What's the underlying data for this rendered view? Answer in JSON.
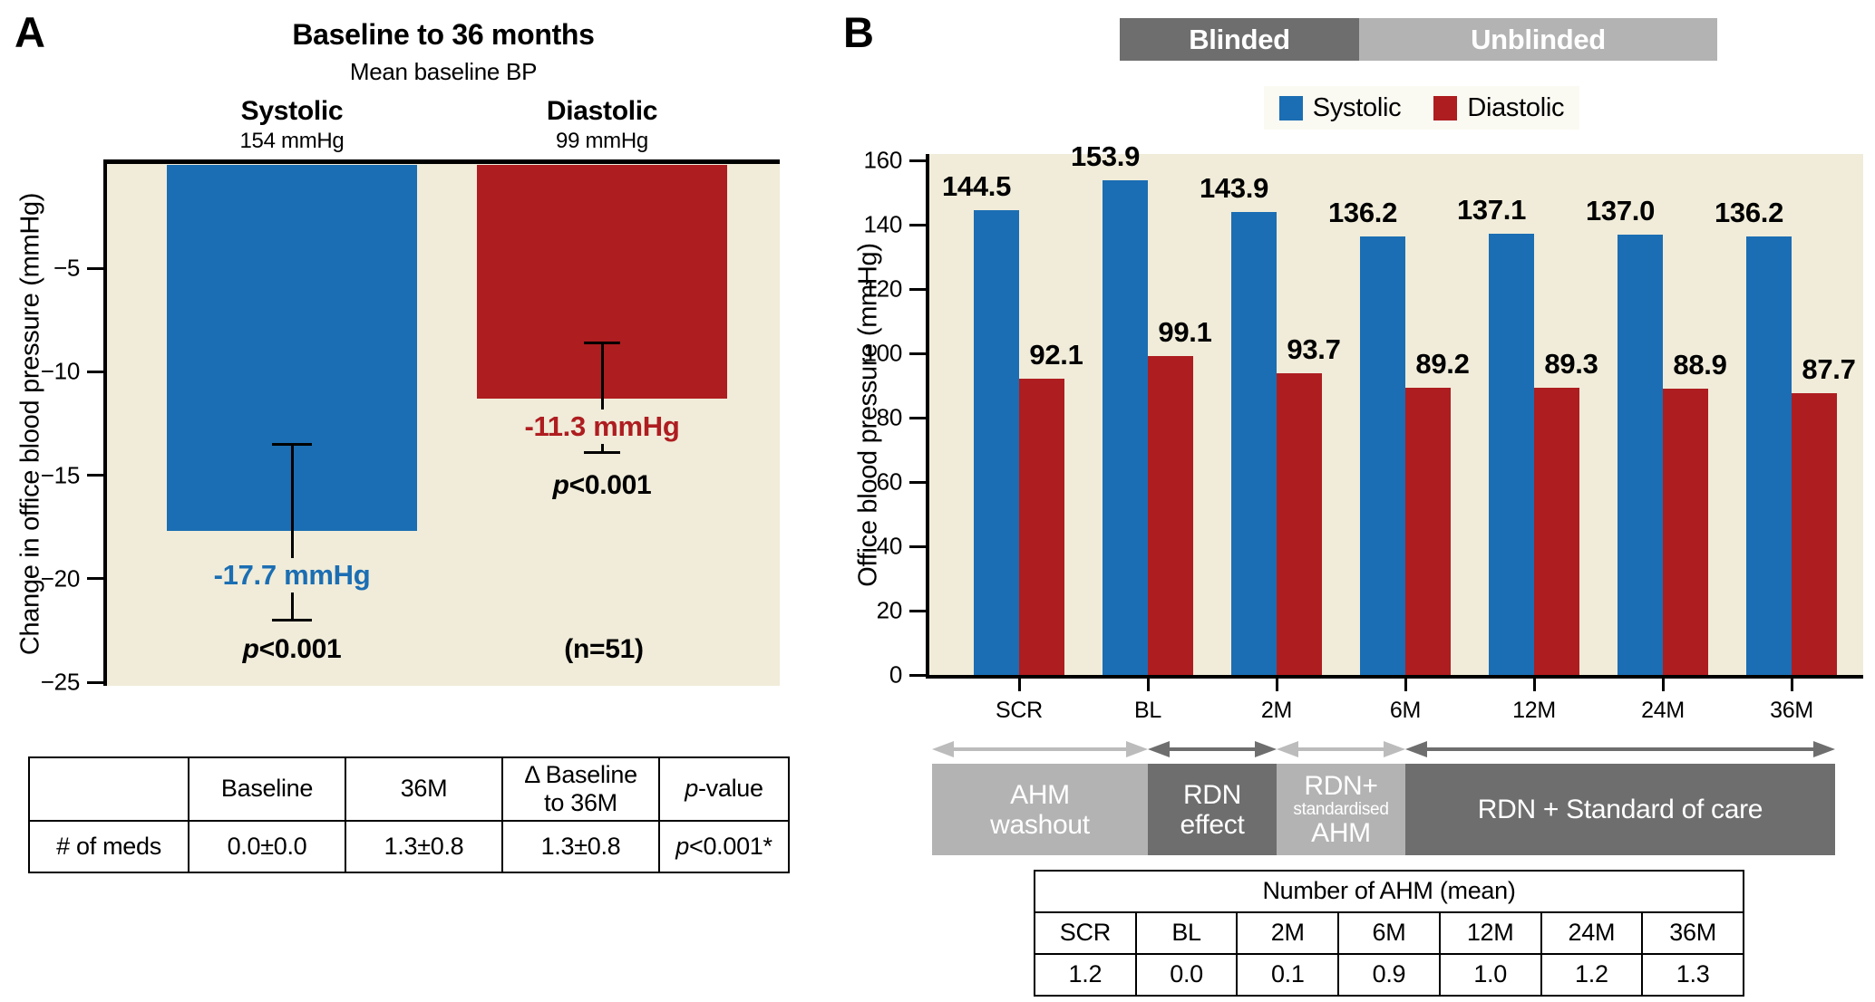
{
  "colors": {
    "systolic_blue": "#1b6eb3",
    "diastolic_red": "#ae1d20",
    "plot_cream": "#f0ecd9",
    "phase_dark_gray": "#6e6e6e",
    "phase_light_gray": "#b3b3b3",
    "arrow_dark": "#6e6e6e",
    "arrow_light": "#bcbcbc",
    "legend_strip": "#fbfaf2",
    "axis_black": "#000000"
  },
  "panelA": {
    "label": "A",
    "title": "Baseline to 36 months",
    "subtitle": "Mean baseline BP",
    "ylabel": "Change in office blood pressure (mmHg)",
    "ytick_labels": [
      "−5",
      "−10",
      "−15",
      "−20",
      "−25"
    ],
    "columns": [
      {
        "name": "Systolic",
        "baseline_bp": "154 mmHg",
        "value_label": "-17.7 mmHg",
        "p_it": "p",
        "p_rest": "<0.001"
      },
      {
        "name": "Diastolic",
        "baseline_bp": "99 mmHg",
        "value_label": "-11.3 mmHg",
        "p_it": "p",
        "p_rest": "<0.001"
      }
    ],
    "n_label": "(n=51)",
    "table": {
      "header_blank": "",
      "header_baseline": "Baseline",
      "header_36m": "36M",
      "header_delta_lines": [
        "Δ Baseline",
        "to 36M"
      ],
      "header_p": {
        "it": "p",
        "rest": "-value"
      },
      "row_label": "# of meds",
      "row_values": [
        "0.0±0.0",
        "1.3±0.8",
        "1.3±0.8"
      ],
      "row_p": {
        "it": "p",
        "rest": "<0.001*"
      }
    }
  },
  "panelB": {
    "label": "B",
    "blinded_bands": [
      {
        "label": "Blinded",
        "shade": "dark"
      },
      {
        "label": "Unblinded",
        "shade": "light"
      }
    ],
    "legend": [
      {
        "label": "Systolic",
        "color_key": "systolic_blue"
      },
      {
        "label": "Diastolic",
        "color_key": "diastolic_red"
      }
    ],
    "ylabel": "Office blood pressure (mmHg)",
    "phases": [
      {
        "lines": [
          "AHM",
          "washout"
        ],
        "small_index": -1,
        "shade": "light"
      },
      {
        "lines": [
          "RDN",
          "effect"
        ],
        "small_index": -1,
        "shade": "dark"
      },
      {
        "lines": [
          "RDN+",
          "standardised",
          "AHM"
        ],
        "small_index": 1,
        "shade": "light"
      },
      {
        "lines": [
          "RDN + Standard of care"
        ],
        "small_index": -1,
        "shade": "dark"
      }
    ],
    "ahm_table_title": "Number of AHM (mean)"
  },
  "chart_data": [
    {
      "type": "bar",
      "title": "Baseline to 36 months",
      "subtitle": "Mean baseline BP",
      "categories": [
        "Systolic",
        "Diastolic"
      ],
      "values": [
        -17.7,
        -11.3
      ],
      "bar_labels": [
        "-17.7 mmHg",
        "-11.3 mmHg"
      ],
      "mean_baseline_bp": [
        "154 mmHg",
        "99 mmHg"
      ],
      "error_bar_ranges": [
        [
          -13.5,
          -22.0
        ],
        [
          -8.6,
          -13.9
        ]
      ],
      "p_values": [
        "p<0.001",
        "p<0.001"
      ],
      "n_label": "(n=51)",
      "xlabel": "",
      "ylabel": "Change in office blood pressure (mmHg)",
      "ylim": [
        -25,
        0
      ],
      "yticks": [
        -5,
        -10,
        -15,
        -20,
        -25
      ],
      "grid": false,
      "bar_colors": [
        "#1b6eb3",
        "#ae1d20"
      ]
    },
    {
      "type": "bar",
      "categories": [
        "SCR",
        "BL",
        "2M",
        "6M",
        "12M",
        "24M",
        "36M"
      ],
      "series": [
        {
          "name": "Systolic",
          "color": "#1b6eb3",
          "values": [
            144.5,
            153.9,
            143.9,
            136.2,
            137.1,
            137.0,
            136.2
          ]
        },
        {
          "name": "Diastolic",
          "color": "#ae1d20",
          "values": [
            92.1,
            99.1,
            93.7,
            89.2,
            89.3,
            88.9,
            87.7
          ]
        }
      ],
      "xlabel": "",
      "ylabel": "Office blood pressure (mmHg)",
      "ylim": [
        0,
        160
      ],
      "yticks": [
        0,
        20,
        40,
        60,
        80,
        100,
        120,
        140,
        160
      ],
      "grid": false,
      "legend_position": "top",
      "top_phase_bands": [
        "Blinded",
        "Unblinded"
      ],
      "bottom_phase_bands": [
        "AHM washout",
        "RDN effect",
        "RDN+ standardised AHM",
        "RDN + Standard of care"
      ],
      "ahm_table": {
        "title": "Number of AHM (mean)",
        "columns": [
          "SCR",
          "BL",
          "2M",
          "6M",
          "12M",
          "24M",
          "36M"
        ],
        "values": [
          1.2,
          0.0,
          0.1,
          0.9,
          1.0,
          1.2,
          1.3
        ]
      }
    }
  ]
}
